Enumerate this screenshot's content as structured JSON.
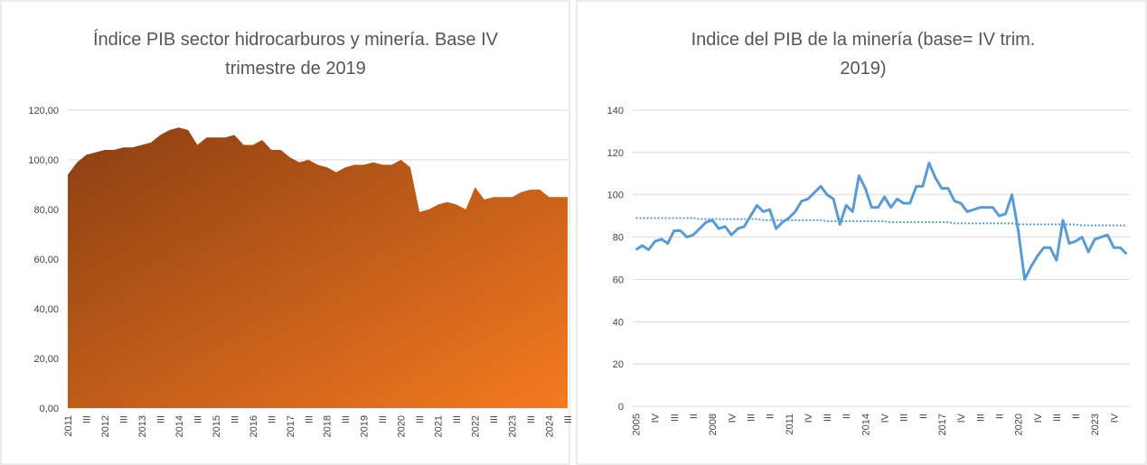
{
  "chart_data": [
    {
      "type": "area",
      "title": [
        "Índice PIB sector hidrocarburos y minería. Base IV",
        "trimestre de 2019"
      ],
      "categories": [
        "2011",
        null,
        "III",
        null,
        "2012",
        null,
        "III",
        null,
        "2013",
        null,
        "III",
        null,
        "2014",
        null,
        "III",
        null,
        "2015",
        null,
        "III",
        null,
        "2016",
        null,
        "III",
        null,
        "2017",
        null,
        "III",
        null,
        "2018",
        null,
        "III",
        null,
        "2019",
        null,
        "III",
        null,
        "2020",
        null,
        "III",
        null,
        "2021",
        null,
        "III",
        null,
        "2022",
        null,
        "III",
        null,
        "2023",
        null,
        "III",
        null,
        "2024",
        null,
        "III"
      ],
      "values": [
        94,
        99,
        102,
        103,
        104,
        104,
        105,
        105,
        106,
        107,
        110,
        112,
        113,
        112,
        106,
        109,
        109,
        109,
        110,
        106,
        106,
        108,
        104,
        104,
        101,
        99,
        100,
        98,
        97,
        95,
        97,
        98,
        98,
        99,
        98,
        98,
        100,
        97,
        79,
        80,
        82,
        83,
        82,
        80,
        89,
        84,
        85,
        85,
        85,
        87,
        88,
        88,
        85,
        85,
        85
      ],
      "gradient": [
        "#8a3e12",
        "#f57a20"
      ],
      "ylim": [
        0,
        120
      ],
      "yticks": [
        {
          "value": 0,
          "label": "0,00"
        },
        {
          "value": 20,
          "label": "20,00"
        },
        {
          "value": 40,
          "label": "40,00"
        },
        {
          "value": 60,
          "label": "60,00"
        },
        {
          "value": 80,
          "label": "80,00"
        },
        {
          "value": 100,
          "label": "100,00"
        },
        {
          "value": 120,
          "label": "120,00"
        }
      ],
      "grid": true
    },
    {
      "type": "line",
      "title": [
        "Indice del PIB de la minería (base= IV trim.",
        "2019)"
      ],
      "categories": [
        "2005",
        null,
        null,
        "IV",
        null,
        null,
        "III",
        null,
        null,
        "II",
        null,
        null,
        "2008",
        null,
        null,
        "IV",
        null,
        null,
        "III",
        null,
        null,
        "II",
        null,
        null,
        "2011",
        null,
        null,
        "IV",
        null,
        null,
        "III",
        null,
        null,
        "II",
        null,
        null,
        "2014",
        null,
        null,
        "IV",
        null,
        null,
        "III",
        null,
        null,
        "II",
        null,
        null,
        "2017",
        null,
        null,
        "IV",
        null,
        null,
        "III",
        null,
        null,
        "II",
        null,
        null,
        "2020",
        null,
        null,
        "IV",
        null,
        null,
        "III",
        null,
        null,
        "II",
        null,
        null,
        "2023",
        null,
        null,
        "IV",
        null,
        null
      ],
      "series": [
        {
          "color": "#5b9bd5",
          "values": [
            74,
            76,
            74,
            78,
            79,
            77,
            83,
            83,
            80,
            81,
            84,
            87,
            88,
            84,
            85,
            81,
            84,
            85,
            90,
            95,
            92,
            93,
            84,
            87,
            89,
            92,
            97,
            98,
            101,
            104,
            100,
            98,
            86,
            95,
            92,
            109,
            103,
            94,
            94,
            99,
            94,
            98,
            96,
            96,
            104,
            104,
            115,
            108,
            103,
            103,
            97,
            96,
            92,
            93,
            94,
            94,
            94,
            90,
            91,
            100,
            83,
            60,
            66,
            71,
            75,
            75,
            69,
            88,
            77,
            78,
            80,
            73,
            79,
            80,
            81,
            75,
            75,
            72
          ]
        },
        {
          "color": "#5b9bd5",
          "dotted": true,
          "values": [
            89,
            89,
            89,
            89,
            89,
            89,
            89,
            89,
            89,
            89,
            88.5,
            88.5,
            88.5,
            88.5,
            88.5,
            88.5,
            88.5,
            88.5,
            88.5,
            88.5,
            88,
            88,
            88,
            88,
            88,
            88,
            88,
            88,
            88,
            88,
            87.5,
            87.5,
            87.5,
            87.5,
            87.5,
            87.5,
            87.5,
            87.5,
            87.5,
            87.5,
            87,
            87,
            87,
            87,
            87,
            87,
            87,
            87,
            87,
            87,
            86.5,
            86.5,
            86.5,
            86.5,
            86.5,
            86.5,
            86.5,
            86.5,
            86.5,
            86.5,
            86,
            86,
            86,
            86,
            86,
            86,
            86,
            86,
            86,
            86,
            85.5,
            85.5,
            85.5,
            85.5,
            85.5,
            85.5,
            85.5,
            85.5
          ]
        }
      ],
      "ylim": [
        0,
        140
      ],
      "yticks": [
        0,
        20,
        40,
        60,
        80,
        100,
        120,
        140
      ],
      "grid": true
    }
  ]
}
